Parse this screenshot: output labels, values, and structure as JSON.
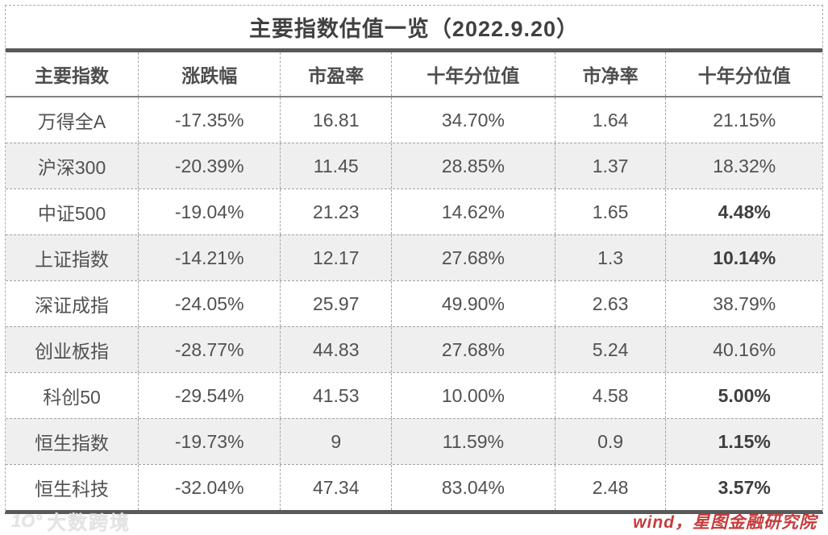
{
  "chart_data": {
    "type": "table",
    "title": "主要指数估值一览（2022.9.20）",
    "columns": [
      "主要指数",
      "涨跌幅",
      "市盈率",
      "十年分位值",
      "市净率",
      "十年分位值"
    ],
    "rows": [
      [
        "万得全A",
        "-17.35%",
        "16.81",
        "34.70%",
        "1.64",
        "21.15%"
      ],
      [
        "沪深300",
        "-20.39%",
        "11.45",
        "28.85%",
        "1.37",
        "18.32%"
      ],
      [
        "中证500",
        "-19.04%",
        "21.23",
        "14.62%",
        "1.65",
        "4.48%"
      ],
      [
        "上证指数",
        "-14.21%",
        "12.17",
        "27.68%",
        "1.3",
        "10.14%"
      ],
      [
        "深证成指",
        "-24.05%",
        "25.97",
        "49.90%",
        "2.63",
        "38.79%"
      ],
      [
        "创业板指",
        "-28.77%",
        "44.83",
        "27.68%",
        "5.24",
        "40.16%"
      ],
      [
        "科创50",
        "-29.54%",
        "41.53",
        "10.00%",
        "4.58",
        "5.00%"
      ],
      [
        "恒生指数",
        "-19.73%",
        "9",
        "11.59%",
        "0.9",
        "1.15%"
      ],
      [
        "恒生科技",
        "-32.04%",
        "47.34",
        "83.04%",
        "2.48",
        "3.57%"
      ]
    ],
    "bold_last_column_rows": [
      2,
      3,
      6,
      7,
      8
    ],
    "source": "wind，星图金融研究院",
    "layout": {
      "alternating_row_background": "on",
      "grid": "dashed-inner-borders",
      "title_position": "top-center"
    }
  },
  "footer": {
    "source_label": "wind，星图金融研究院",
    "watermark_text": "大数跨境",
    "watermark_logo": "1O°"
  },
  "colors": {
    "text": "#515151",
    "title_text": "#404040",
    "divider_dark": "#595959",
    "header_divider": "#828282",
    "dashed_border": "#a3a3a3",
    "row_alt_background": "#efefef",
    "source_red": "#c63c3c",
    "watermark_gray": "#e4e4e4"
  }
}
